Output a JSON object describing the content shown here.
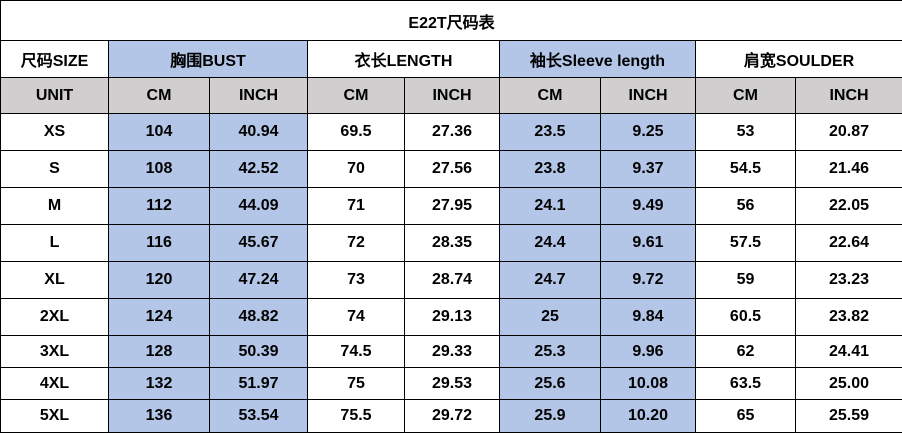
{
  "title": "E22T尺码表",
  "header": [
    "尺码SIZE",
    "胸围BUST",
    "衣长LENGTH",
    "袖长Sleeve length",
    "肩宽SOULDER"
  ],
  "units": [
    "UNIT",
    "CM",
    "INCH",
    "CM",
    "INCH",
    "CM",
    "INCH",
    "CM",
    "INCH"
  ],
  "rows": [
    [
      "XS",
      "104",
      "40.94",
      "69.5",
      "27.36",
      "23.5",
      "9.25",
      "53",
      "20.87"
    ],
    [
      "S",
      "108",
      "42.52",
      "70",
      "27.56",
      "23.8",
      "9.37",
      "54.5",
      "21.46"
    ],
    [
      "M",
      "112",
      "44.09",
      "71",
      "27.95",
      "24.1",
      "9.49",
      "56",
      "22.05"
    ],
    [
      "L",
      "116",
      "45.67",
      "72",
      "28.35",
      "24.4",
      "9.61",
      "57.5",
      "22.64"
    ],
    [
      "XL",
      "120",
      "47.24",
      "73",
      "28.74",
      "24.7",
      "9.72",
      "59",
      "23.23"
    ],
    [
      "2XL",
      "124",
      "48.82",
      "74",
      "29.13",
      "25",
      "9.84",
      "60.5",
      "23.82"
    ],
    [
      "3XL",
      "128",
      "50.39",
      "74.5",
      "29.33",
      "25.3",
      "9.96",
      "62",
      "24.41"
    ],
    [
      "4XL",
      "132",
      "51.97",
      "75",
      "29.53",
      "25.6",
      "10.08",
      "63.5",
      "25.00"
    ],
    [
      "5XL",
      "136",
      "53.54",
      "75.5",
      "29.72",
      "25.9",
      "10.20",
      "65",
      "25.59"
    ]
  ]
}
